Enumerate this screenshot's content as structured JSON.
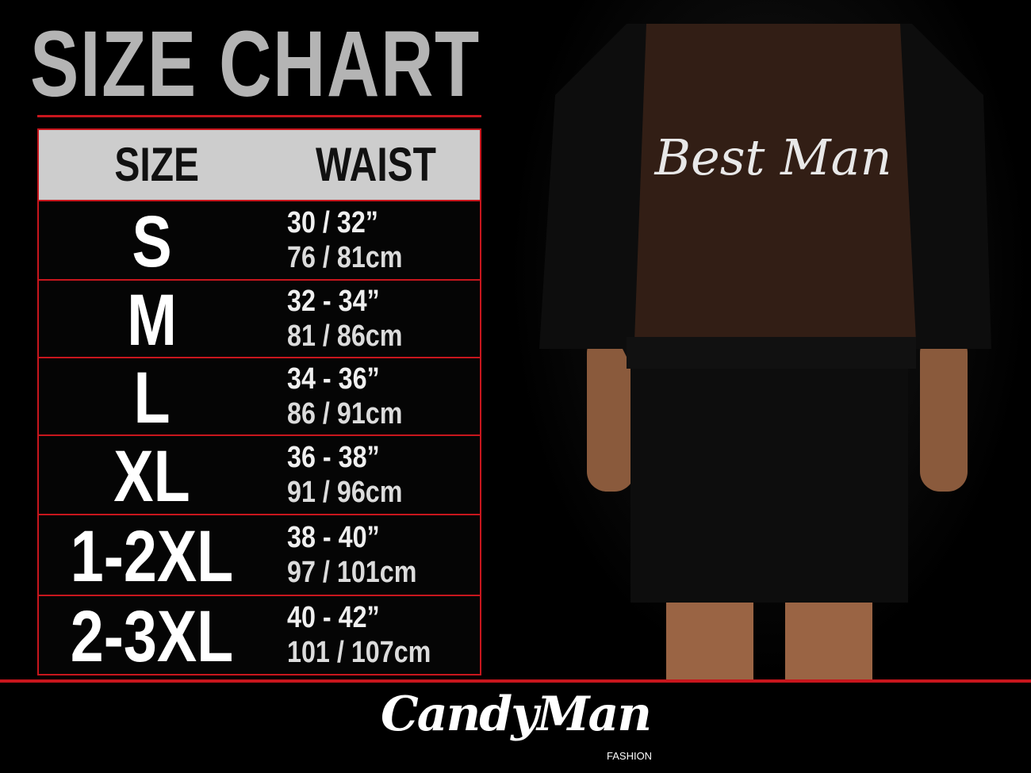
{
  "title": "SIZE CHART",
  "table": {
    "headers": {
      "size": "SIZE",
      "waist": "WAIST"
    },
    "rows": [
      {
        "size": "S",
        "inches": "30 / 32”",
        "cm": "76 / 81cm"
      },
      {
        "size": "M",
        "inches": "32 - 34”",
        "cm": "81 / 86cm"
      },
      {
        "size": "L",
        "inches": "34 - 36”",
        "cm": "86 / 91cm"
      },
      {
        "size": "XL",
        "inches": "36 - 38”",
        "cm": "91 / 96cm"
      },
      {
        "size": "1-2XL",
        "inches": "38 - 40”",
        "cm": "97 / 101cm"
      },
      {
        "size": "2-3XL",
        "inches": "40 - 42”",
        "cm": "101 / 107cm"
      }
    ]
  },
  "product_print": "Best Man",
  "brand": {
    "name": "CandyMan",
    "sub": "FASHION"
  },
  "colors": {
    "accent": "#c8161d",
    "title": "#b4b4b4",
    "header_bg": "#cdcdcd"
  }
}
